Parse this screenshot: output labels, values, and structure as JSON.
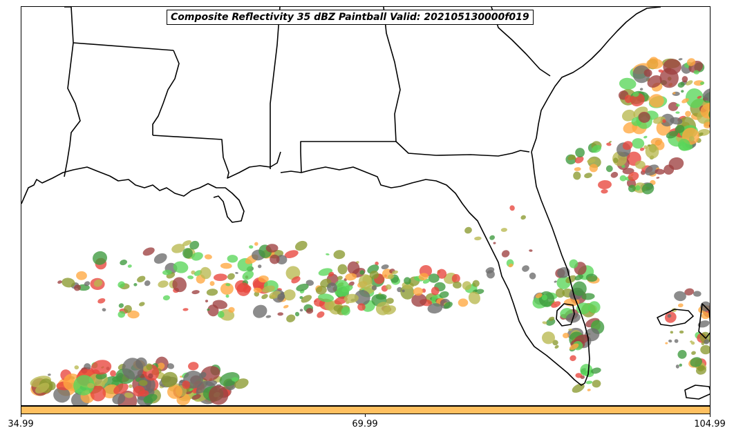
{
  "title": "Composite Reflectivity 35 dBZ Paintball Valid: 202105130000f019",
  "colorbar": {
    "color": "#ffc060",
    "ticks": [
      "34.99",
      "69.99",
      "104.99"
    ]
  },
  "palette": [
    "#6b6b6b",
    "#e8453c",
    "#5ad65a",
    "#3d9a3d",
    "#b8b850",
    "#ffa840",
    "#9e4040",
    "#8a9a30"
  ],
  "coastline_color": "#000000"
}
